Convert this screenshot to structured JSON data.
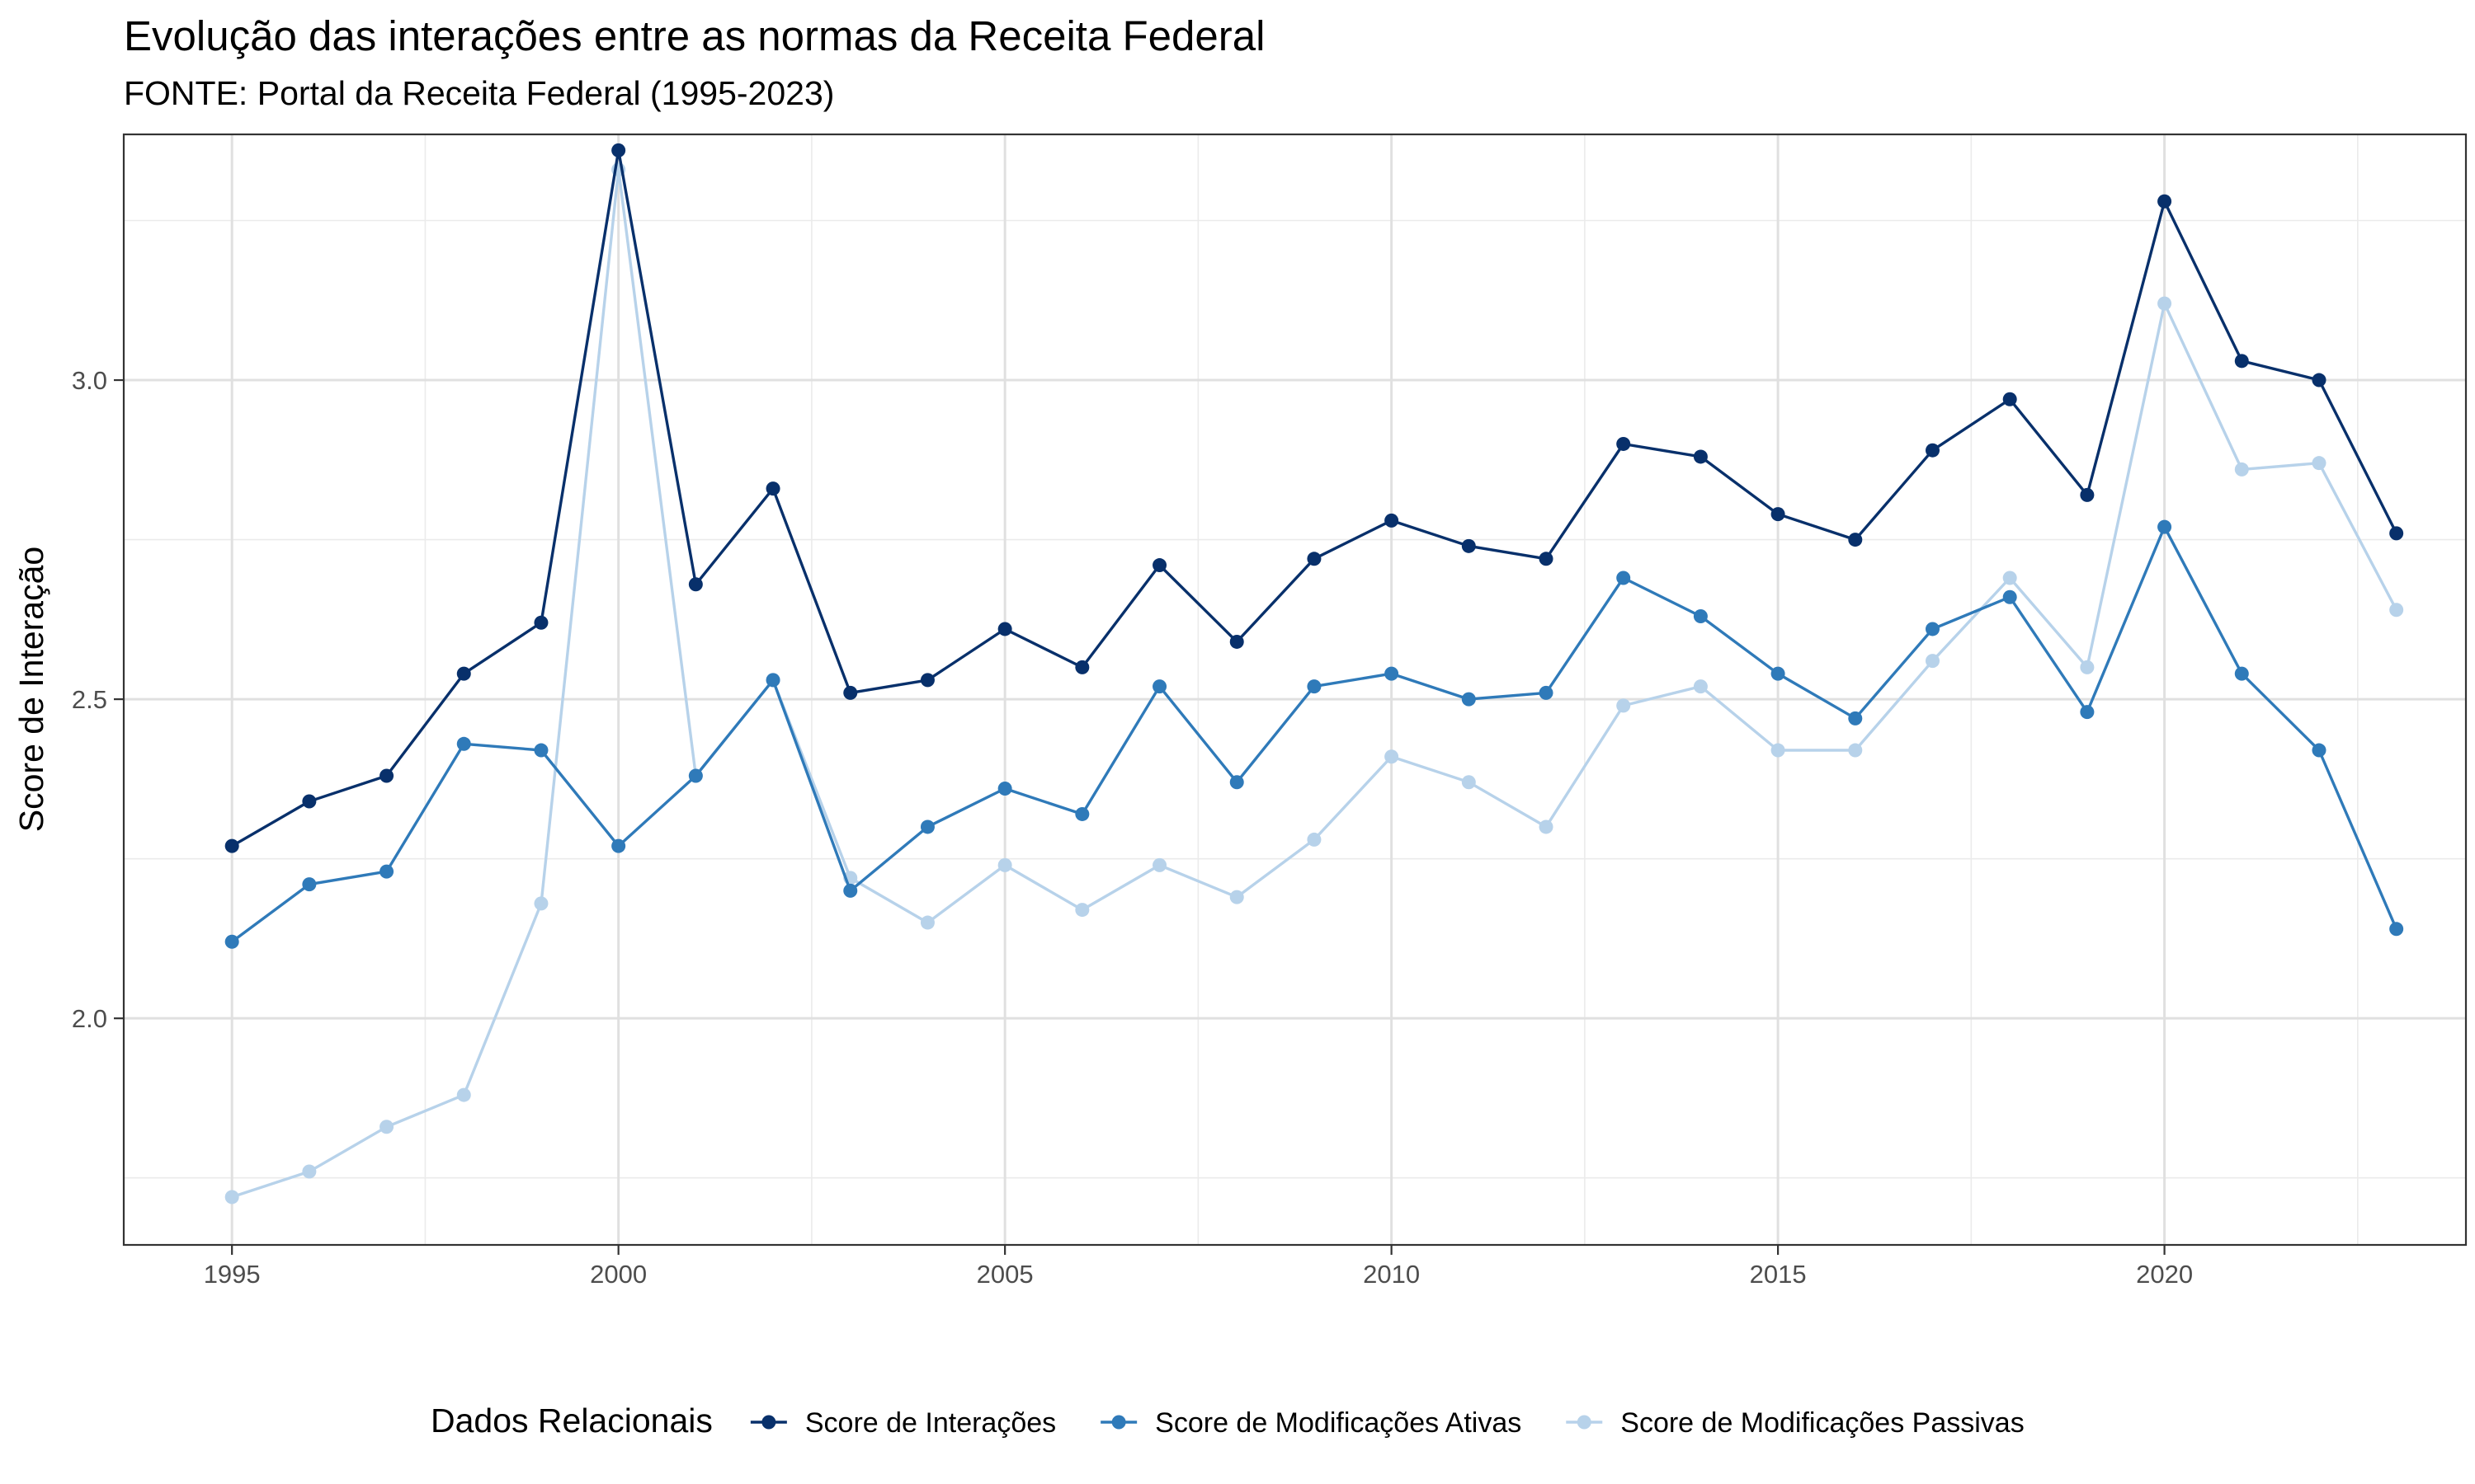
{
  "chart_data": {
    "type": "line",
    "title": "Evolução das interações entre as normas da Receita Federal",
    "subtitle": "FONTE: Portal da Receita Federal (1995-2023)",
    "xlabel": "",
    "ylabel": "Score de Interação",
    "xlim": [
      1993.6,
      2023.9
    ],
    "ylim": [
      1.645,
      3.385
    ],
    "x_ticks": [
      1995,
      2000,
      2005,
      2010,
      2015,
      2020
    ],
    "y_ticks": [
      2.0,
      2.5,
      3.0
    ],
    "y_tick_labels": [
      "2.0",
      "2.5",
      "3.0"
    ],
    "grid": true,
    "legend_title": "Dados Relacionais",
    "legend_position": "bottom",
    "x": [
      1995,
      1996,
      1997,
      1998,
      1999,
      2000,
      2001,
      2002,
      2003,
      2004,
      2005,
      2006,
      2007,
      2008,
      2009,
      2010,
      2011,
      2012,
      2013,
      2014,
      2015,
      2016,
      2017,
      2018,
      2019,
      2020,
      2021,
      2022,
      2023
    ],
    "series": [
      {
        "name": "Score de Interações",
        "color": "#08306b",
        "values": [
          2.27,
          2.34,
          2.38,
          2.54,
          2.62,
          3.36,
          2.68,
          2.83,
          2.51,
          2.53,
          2.61,
          2.55,
          2.71,
          2.59,
          2.72,
          2.78,
          2.74,
          2.72,
          2.9,
          2.88,
          2.79,
          2.75,
          2.89,
          2.97,
          2.82,
          3.28,
          3.03,
          3.0,
          2.76
        ]
      },
      {
        "name": "Score de Modificações Ativas",
        "color": "#2f7ab9",
        "values": [
          2.12,
          2.21,
          2.23,
          2.43,
          2.42,
          2.27,
          2.38,
          2.53,
          2.2,
          2.3,
          2.36,
          2.32,
          2.52,
          2.37,
          2.52,
          2.54,
          2.5,
          2.51,
          2.69,
          2.63,
          2.54,
          2.47,
          2.61,
          2.66,
          2.48,
          2.77,
          2.54,
          2.42,
          2.14
        ]
      },
      {
        "name": "Score de Modificações Passivas",
        "color": "#b7d2ea",
        "values": [
          1.72,
          1.76,
          1.83,
          1.88,
          2.18,
          3.33,
          2.38,
          2.53,
          2.22,
          2.15,
          2.24,
          2.17,
          2.24,
          2.19,
          2.28,
          2.41,
          2.37,
          2.3,
          2.49,
          2.52,
          2.42,
          2.42,
          2.56,
          2.69,
          2.55,
          3.12,
          2.86,
          2.87,
          2.64
        ]
      }
    ]
  }
}
